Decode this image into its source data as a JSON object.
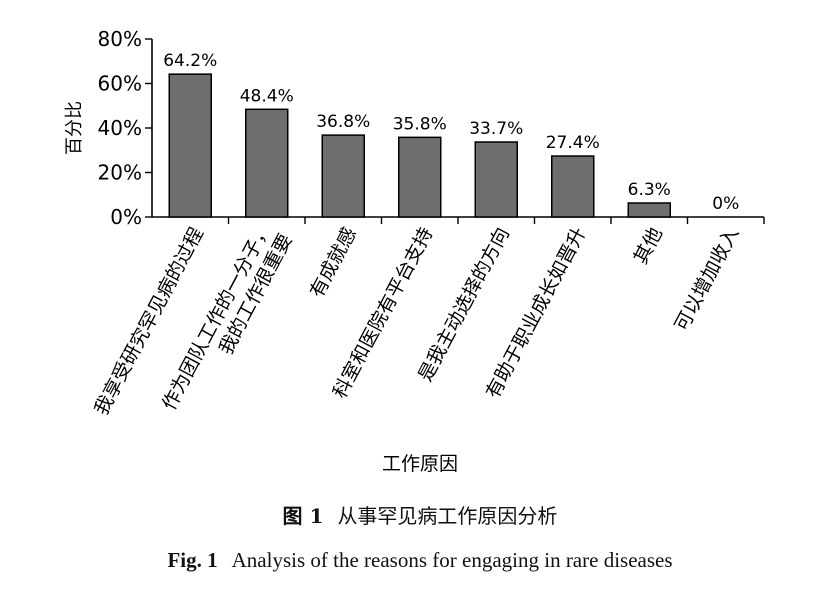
{
  "chart_data": {
    "type": "bar",
    "categories": [
      [
        "我享受研究罕见病的过程"
      ],
      [
        "作为团队工作的一分子，",
        "我的工作很重要"
      ],
      [
        "有成就感"
      ],
      [
        "科室和医院有平台支持"
      ],
      [
        "是我主动选择的方向"
      ],
      [
        "有助于职业成长如晋升"
      ],
      [
        "其他"
      ],
      [
        "可以增加收入"
      ]
    ],
    "values": [
      64.2,
      48.4,
      36.8,
      35.8,
      33.7,
      27.4,
      6.3,
      0
    ],
    "data_labels": [
      "64.2%",
      "48.4%",
      "36.8%",
      "35.8%",
      "33.7%",
      "27.4%",
      "6.3%",
      "0%"
    ],
    "xlabel": "工作原因",
    "ylabel": "百分比",
    "ylim": [
      0,
      80
    ],
    "yticks": [
      0,
      20,
      40,
      60,
      80
    ],
    "ytick_labels": [
      "0%",
      "20%",
      "40%",
      "60%",
      "80%"
    ],
    "bar_color": "#6e6e6e",
    "grid": false
  },
  "caption": {
    "cn_fig": "图 1",
    "cn_text": "从事罕见病工作原因分析",
    "en_fig": "Fig. 1",
    "en_text": "Analysis of the reasons for engaging in rare diseases"
  }
}
